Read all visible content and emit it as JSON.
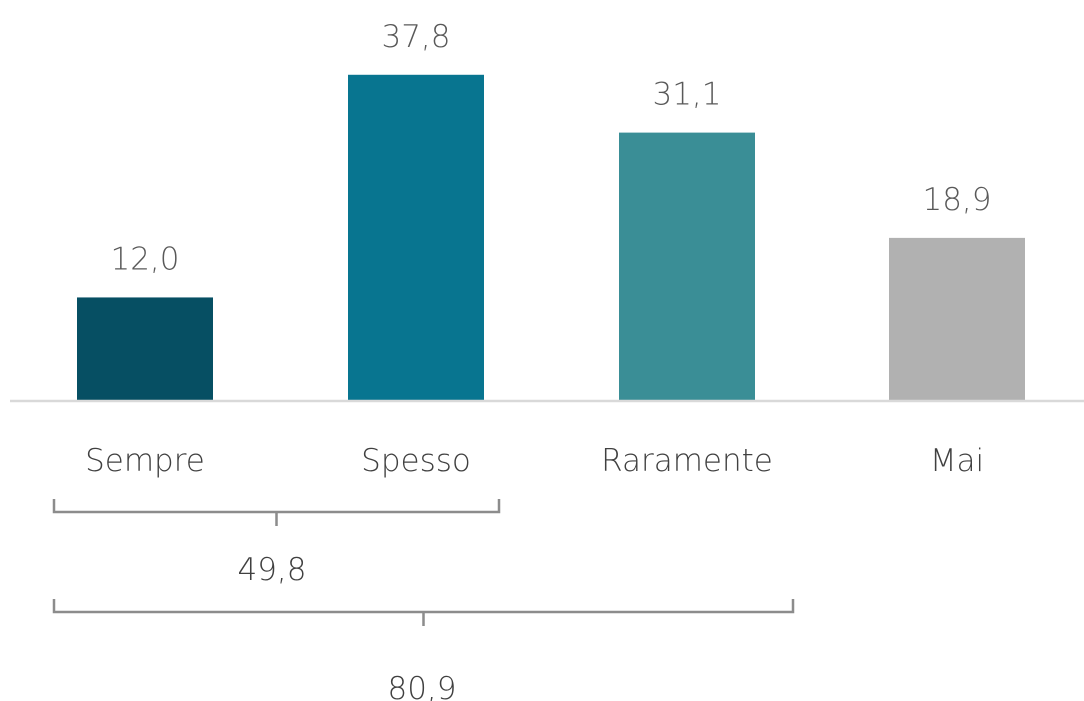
{
  "chart_data": {
    "type": "bar",
    "categories": [
      "Sempre",
      "Spesso",
      "Raramente",
      "Mai"
    ],
    "values": [
      12.0,
      37.8,
      31.1,
      18.9
    ],
    "value_labels": [
      "12,0",
      "37,8",
      "31,1",
      "18,9"
    ],
    "colors": [
      "#064f63",
      "#087590",
      "#3a8e96",
      "#b1b1b1"
    ],
    "title": "",
    "xlabel": "",
    "ylabel": "",
    "ylim": [
      0,
      40
    ],
    "grid": false,
    "legend": "none",
    "brackets": [
      {
        "spans": [
          "Sempre",
          "Spesso"
        ],
        "label": "49,8",
        "value": 49.8
      },
      {
        "spans": [
          "Sempre",
          "Spesso",
          "Raramente"
        ],
        "label": "80,9",
        "value": 80.9
      }
    ]
  }
}
